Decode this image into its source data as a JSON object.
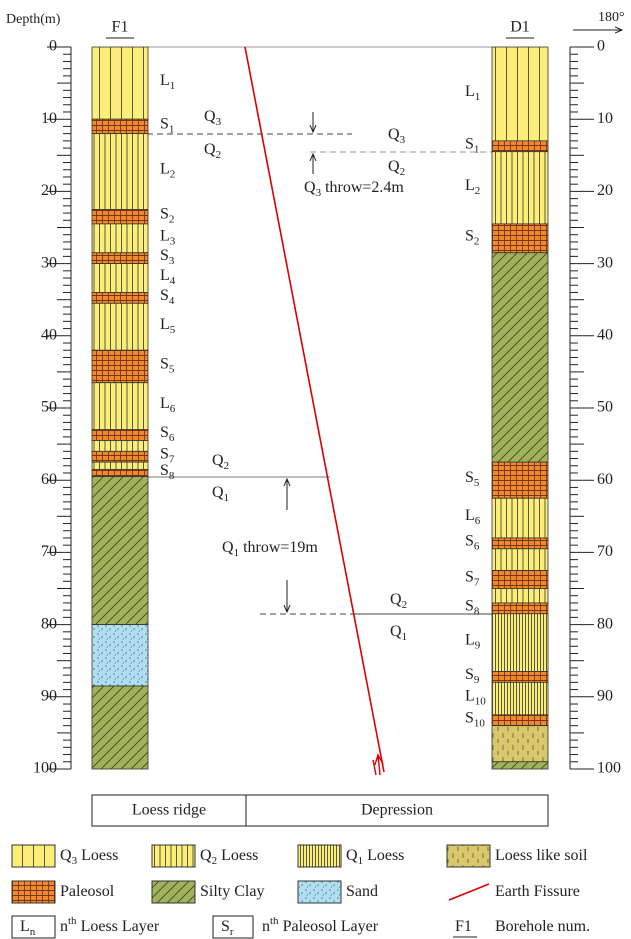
{
  "header": {
    "depth_label": "Depth(m)",
    "direction": "180°"
  },
  "depth_ticks": [
    0,
    10,
    20,
    30,
    40,
    50,
    60,
    70,
    80,
    90,
    100
  ],
  "boreholes": [
    {
      "name": "F1",
      "layers": [
        {
          "top": 0,
          "bottom": 10,
          "pattern": 0,
          "label": {
            "base": "L",
            "sub": "1"
          }
        },
        {
          "top": 10,
          "bottom": 12,
          "pattern": 4,
          "label": {
            "base": "S",
            "sub": "1"
          }
        },
        {
          "top": 12,
          "bottom": 22.5,
          "pattern": 1,
          "label": {
            "base": "L",
            "sub": "2"
          }
        },
        {
          "top": 22.5,
          "bottom": 24.5,
          "pattern": 4,
          "label": {
            "base": "S",
            "sub": "2"
          }
        },
        {
          "top": 24.5,
          "bottom": 28.5,
          "pattern": 1,
          "label": {
            "base": "L",
            "sub": "3"
          }
        },
        {
          "top": 28.5,
          "bottom": 30,
          "pattern": 4,
          "label": {
            "base": "S",
            "sub": "3"
          }
        },
        {
          "top": 30,
          "bottom": 34,
          "pattern": 1,
          "label": {
            "base": "L",
            "sub": "4"
          }
        },
        {
          "top": 34,
          "bottom": 35.5,
          "pattern": 4,
          "label": {
            "base": "S",
            "sub": "4"
          }
        },
        {
          "top": 35.5,
          "bottom": 42,
          "pattern": 1,
          "label": {
            "base": "L",
            "sub": "5"
          }
        },
        {
          "top": 42,
          "bottom": 46.5,
          "pattern": 4,
          "label": {
            "base": "S",
            "sub": "5"
          }
        },
        {
          "top": 46.5,
          "bottom": 53,
          "pattern": 1,
          "label": {
            "base": "L",
            "sub": "6"
          }
        },
        {
          "top": 53,
          "bottom": 54.5,
          "pattern": 4,
          "label": {
            "base": "S",
            "sub": "6"
          }
        },
        {
          "top": 54.5,
          "bottom": 56,
          "pattern": 1
        },
        {
          "top": 56,
          "bottom": 57.5,
          "pattern": 4,
          "label": {
            "base": "S",
            "sub": "7"
          }
        },
        {
          "top": 57.5,
          "bottom": 58.5,
          "pattern": 1
        },
        {
          "top": 58.5,
          "bottom": 59.5,
          "pattern": 4,
          "label": {
            "base": "S",
            "sub": "8"
          }
        },
        {
          "top": 59.5,
          "bottom": 80,
          "pattern": 5
        },
        {
          "top": 80,
          "bottom": 88.5,
          "pattern": 6
        },
        {
          "top": 88.5,
          "bottom": 100,
          "pattern": 5
        }
      ]
    },
    {
      "name": "D1",
      "layers": [
        {
          "top": 0,
          "bottom": 13,
          "pattern": 0,
          "label": {
            "base": "L",
            "sub": "1"
          }
        },
        {
          "top": 13,
          "bottom": 14.5,
          "pattern": 4,
          "label": {
            "base": "S",
            "sub": "1"
          }
        },
        {
          "top": 14.5,
          "bottom": 24.5,
          "pattern": 1,
          "label": {
            "base": "L",
            "sub": "2"
          }
        },
        {
          "top": 24.5,
          "bottom": 28.5,
          "pattern": 4,
          "label": {
            "base": "S",
            "sub": "2"
          }
        },
        {
          "top": 28.5,
          "bottom": 57.5,
          "pattern": 5
        },
        {
          "top": 57.5,
          "bottom": 62.5,
          "pattern": 4,
          "label": {
            "base": "S",
            "sub": "5"
          }
        },
        {
          "top": 62.5,
          "bottom": 68,
          "pattern": 1,
          "label": {
            "base": "L",
            "sub": "6"
          }
        },
        {
          "top": 68,
          "bottom": 69.5,
          "pattern": 4,
          "label": {
            "base": "S",
            "sub": "6"
          }
        },
        {
          "top": 69.5,
          "bottom": 72.5,
          "pattern": 1
        },
        {
          "top": 72.5,
          "bottom": 75,
          "pattern": 4,
          "label": {
            "base": "S",
            "sub": "7"
          }
        },
        {
          "top": 75,
          "bottom": 77,
          "pattern": 1
        },
        {
          "top": 77,
          "bottom": 78.5,
          "pattern": 4,
          "label": {
            "base": "S",
            "sub": "8"
          }
        },
        {
          "top": 78.5,
          "bottom": 86.5,
          "pattern": 2,
          "label": {
            "base": "L",
            "sub": "9"
          }
        },
        {
          "top": 86.5,
          "bottom": 88,
          "pattern": 4,
          "label": {
            "base": "S",
            "sub": "9"
          }
        },
        {
          "top": 88,
          "bottom": 92.5,
          "pattern": 2,
          "label": {
            "base": "L",
            "sub": "10"
          }
        },
        {
          "top": 92.5,
          "bottom": 94,
          "pattern": 4,
          "label": {
            "base": "S",
            "sub": "10"
          }
        },
        {
          "top": 94,
          "bottom": 99,
          "pattern": 3
        },
        {
          "top": 99,
          "bottom": 100,
          "pattern": 5
        }
      ]
    }
  ],
  "annotations": [
    {
      "base": "Q",
      "sub": "3"
    },
    {
      "base": "Q",
      "sub": "2"
    },
    {
      "base": "Q",
      "sub": "3"
    },
    {
      "base": "Q",
      "sub": "2"
    },
    {
      "base": "Q",
      "sub": "3",
      "text": " throw=2.4m"
    },
    {
      "base": "Q",
      "sub": "2"
    },
    {
      "base": "Q",
      "sub": "1"
    },
    {
      "base": "Q",
      "sub": "1",
      "text": " throw=19m"
    },
    {
      "base": "Q",
      "sub": "2"
    },
    {
      "base": "Q",
      "sub": "1"
    }
  ],
  "regions": [
    "Loess ridge",
    "Depression"
  ],
  "legend": [
    {
      "base": "Q",
      "sub": "3",
      "text": " Loess"
    },
    {
      "base": "Q",
      "sub": "2",
      "text": " Loess"
    },
    {
      "base": "Q",
      "sub": "1",
      "text": " Loess"
    },
    {
      "text": "Loess like soil"
    },
    {
      "text": "Paleosol"
    },
    {
      "text": "Silty Clay"
    },
    {
      "text": "Sand"
    },
    {
      "text": "Earth Fissure"
    },
    {
      "symbol": "L",
      "symbol_sub": "n",
      "base": "n",
      "sup": "th",
      "text": " Loess Layer"
    },
    {
      "symbol": "S",
      "symbol_sub": "r",
      "base": "n",
      "sup": "th",
      "text": " Paleosol Layer"
    },
    {
      "symbol": "F1",
      "text": "Borehole num."
    }
  ]
}
